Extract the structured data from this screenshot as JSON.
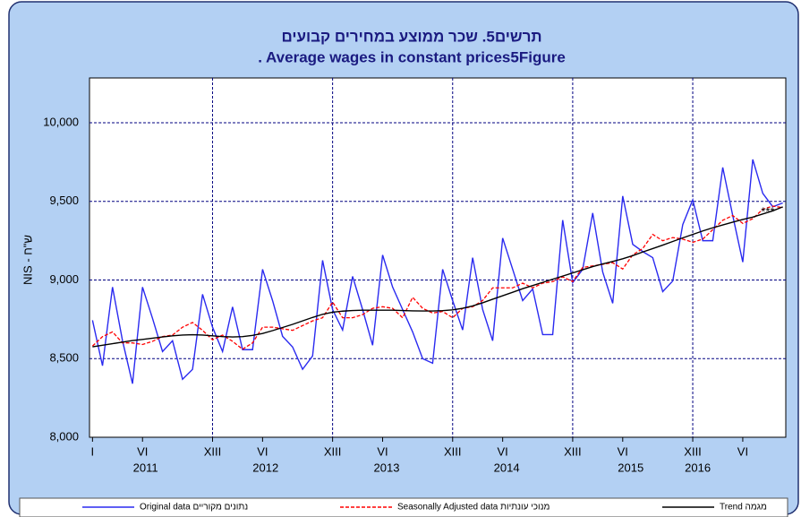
{
  "chart_data": {
    "type": "line",
    "title": "תרשים5. שכר ממוצע במחירים קבועים",
    "subtitle": ". Average wages in constant prices5Figure",
    "y_label": "NIS - ש\"ח",
    "x": [
      1,
      2,
      3,
      4,
      5,
      6,
      7,
      8,
      9,
      10,
      11,
      12,
      13,
      14,
      15,
      16,
      17,
      18,
      19,
      20,
      21,
      22,
      23,
      24,
      25,
      26,
      27,
      28,
      29,
      30,
      31,
      32,
      33,
      34,
      35,
      36,
      37,
      38,
      39,
      40,
      41,
      42,
      43,
      44,
      45,
      46,
      47,
      48,
      49,
      50,
      51,
      52,
      53,
      54,
      55,
      56,
      57,
      58,
      59,
      60,
      61,
      62,
      63,
      64,
      65,
      66,
      67,
      68,
      69,
      70
    ],
    "series": [
      {
        "name": "Original data  נתונים מקוריים",
        "color": "#2a2af0",
        "dash": false,
        "values": [
          8744,
          8455,
          8955,
          8614,
          8341,
          8955,
          8756,
          8545,
          8614,
          8369,
          8432,
          8909,
          8700,
          8545,
          8829,
          8557,
          8557,
          9068,
          8869,
          8642,
          8574,
          8432,
          8517,
          9125,
          8812,
          8682,
          9023,
          8812,
          8585,
          9159,
          8955,
          8812,
          8670,
          8500,
          8471,
          9068,
          8869,
          8682,
          9142,
          8812,
          8614,
          9267,
          9068,
          8869,
          8943,
          8653,
          8653,
          9381,
          8983,
          9068,
          9426,
          9051,
          8852,
          9534,
          9227,
          9181,
          9142,
          8926,
          8994,
          9352,
          9510,
          9250,
          9250,
          9716,
          9409,
          9114,
          9767,
          9551,
          9466,
          9490
        ]
      },
      {
        "name": "Seasonally  Adjusted  data  מנוכי עונתיות",
        "color": "#ff0000",
        "dash": true,
        "values": [
          8580,
          8640,
          8670,
          8600,
          8600,
          8590,
          8610,
          8640,
          8650,
          8700,
          8730,
          8680,
          8620,
          8650,
          8610,
          8560,
          8600,
          8700,
          8700,
          8690,
          8680,
          8710,
          8740,
          8760,
          8860,
          8760,
          8760,
          8780,
          8820,
          8830,
          8820,
          8760,
          8890,
          8820,
          8790,
          8800,
          8760,
          8820,
          8830,
          8870,
          8950,
          8950,
          8950,
          8980,
          8950,
          8980,
          8990,
          9020,
          8990,
          9080,
          9090,
          9100,
          9110,
          9070,
          9160,
          9200,
          9290,
          9250,
          9270,
          9260,
          9240,
          9260,
          9320,
          9380,
          9410,
          9360,
          9390,
          9450,
          9470,
          9460
        ]
      },
      {
        "name": "Trend  מגמה",
        "color": "#000000",
        "dash": false,
        "values": [
          8575,
          8585,
          8595,
          8605,
          8615,
          8622,
          8630,
          8638,
          8645,
          8650,
          8652,
          8650,
          8645,
          8640,
          8638,
          8640,
          8648,
          8660,
          8678,
          8698,
          8718,
          8740,
          8762,
          8782,
          8795,
          8802,
          8806,
          8808,
          8808,
          8808,
          8808,
          8806,
          8804,
          8803,
          8803,
          8805,
          8810,
          8820,
          8835,
          8855,
          8878,
          8900,
          8922,
          8945,
          8965,
          8985,
          9005,
          9025,
          9045,
          9065,
          9085,
          9102,
          9118,
          9135,
          9155,
          9178,
          9200,
          9222,
          9245,
          9268,
          9290,
          9312,
          9332,
          9350,
          9368,
          9385,
          9400,
          9420,
          9440,
          9465
        ]
      }
    ],
    "xlim": [
      0.7,
      70.3
    ],
    "xticks": [
      {
        "value": 1,
        "label": "I"
      },
      {
        "value": 6,
        "label": "VI"
      },
      {
        "value": 13,
        "label": "XIII"
      },
      {
        "value": 18,
        "label": "VI"
      },
      {
        "value": 25,
        "label": "XIII"
      },
      {
        "value": 30,
        "label": "VI"
      },
      {
        "value": 37,
        "label": "XIII"
      },
      {
        "value": 42,
        "label": "VI"
      },
      {
        "value": 49,
        "label": "XIII"
      },
      {
        "value": 54,
        "label": "VI"
      },
      {
        "value": 61,
        "label": "XIII"
      },
      {
        "value": 66,
        "label": "VI"
      }
    ],
    "xgrid": [
      13,
      25,
      37,
      49,
      61
    ],
    "year_labels": [
      {
        "value": 6.3,
        "label": "2011"
      },
      {
        "value": 18.3,
        "label": "2012"
      },
      {
        "value": 30.4,
        "label": "2013"
      },
      {
        "value": 42.4,
        "label": "2014"
      },
      {
        "value": 54.8,
        "label": "2015"
      },
      {
        "value": 61.5,
        "label": "2016"
      }
    ],
    "ylim": [
      8000,
      10285
    ],
    "yticks": [
      {
        "value": 8000,
        "label": "8,000"
      },
      {
        "value": 8500,
        "label": "8,500"
      },
      {
        "value": 9000,
        "label": "9,000"
      },
      {
        "value": 9500,
        "label": "9,500"
      },
      {
        "value": 10000,
        "label": "10,000"
      }
    ],
    "grid": true,
    "annotation": {
      "text": "***",
      "x": 68.5,
      "y": 9430
    }
  }
}
